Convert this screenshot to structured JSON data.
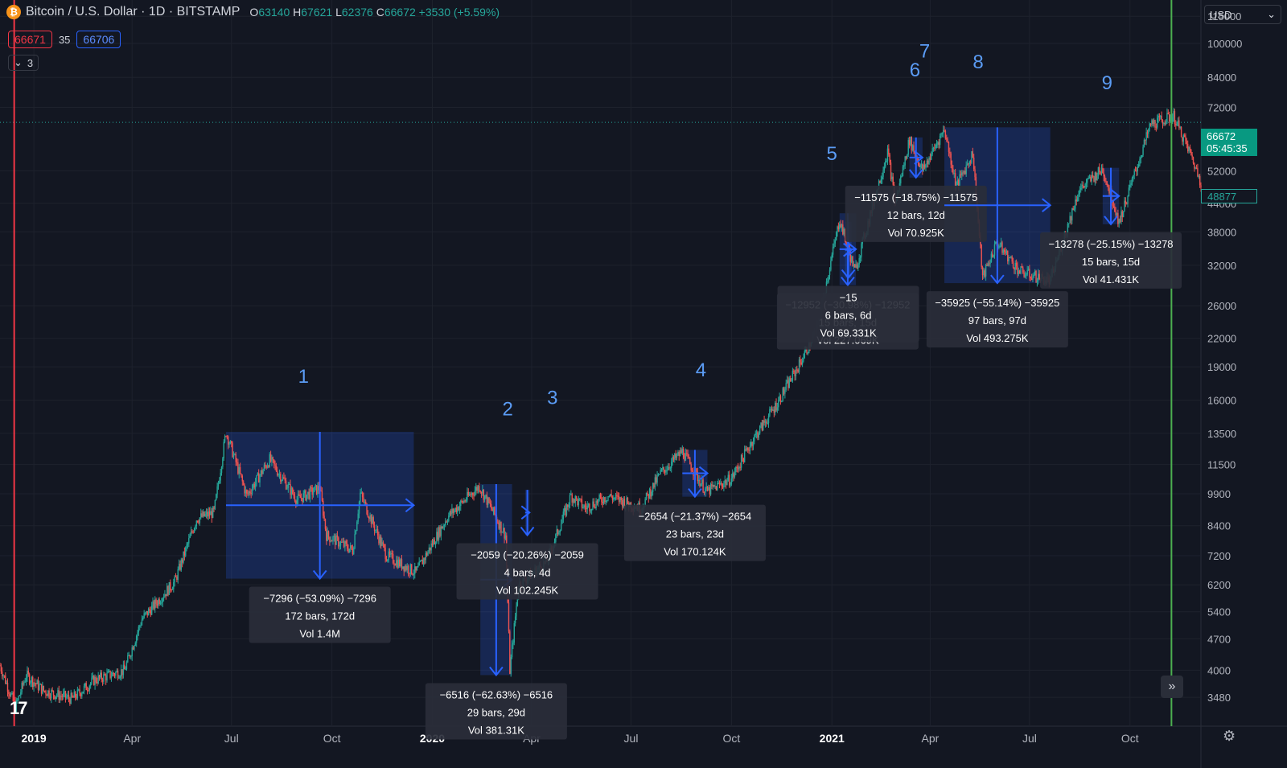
{
  "header": {
    "title": "Bitcoin / U.S. Dollar · 1D · BITSTAMP",
    "open_label": "O",
    "open": "63140",
    "high_label": "H",
    "high": "67621",
    "low_label": "L",
    "low": "62376",
    "close_label": "C",
    "close": "66672",
    "change": "+3530 (+5.59%)"
  },
  "indicator": {
    "bid": "66671",
    "spread": "35",
    "ask": "66706"
  },
  "collapse": {
    "icon": "chevron-down-icon",
    "count": "3"
  },
  "currency": {
    "label": "USD",
    "icon": "chevron-down-icon"
  },
  "price_tags": {
    "last": "66672",
    "countdown": "05:45:35",
    "line": "48877"
  },
  "colors": {
    "up": "#26a69a",
    "down": "#ef5350",
    "accent": "#2962ff",
    "bg": "#131722"
  },
  "chart_data": {
    "type": "candlestick",
    "x_range": [
      "2018-12-01",
      "2021-12-05"
    ],
    "y_scale": "log",
    "ylim": [
      3000,
      125000
    ],
    "y_ticks": [
      "115000",
      "100000",
      "84000",
      "72000",
      "52000",
      "44000",
      "38000",
      "32000",
      "26000",
      "22000",
      "19000",
      "16000",
      "13500",
      "11500",
      "9900",
      "8400",
      "7200",
      "6200",
      "5400",
      "4700",
      "4000",
      "3480"
    ],
    "x_ticks": [
      {
        "label": "2019",
        "date": "2019-01-01",
        "bold": true
      },
      {
        "label": "Apr",
        "date": "2019-04-01"
      },
      {
        "label": "Jul",
        "date": "2019-07-01"
      },
      {
        "label": "Oct",
        "date": "2019-10-01"
      },
      {
        "label": "2020",
        "date": "2020-01-01",
        "bold": true
      },
      {
        "label": "Apr",
        "date": "2020-04-01"
      },
      {
        "label": "Jul",
        "date": "2020-07-01"
      },
      {
        "label": "Oct",
        "date": "2020-10-01"
      },
      {
        "label": "2021",
        "date": "2021-01-01",
        "bold": true
      },
      {
        "label": "Apr",
        "date": "2021-04-01"
      },
      {
        "label": "Jul",
        "date": "2021-07-01"
      },
      {
        "label": "Oct",
        "date": "2021-10-01"
      }
    ],
    "price_path": [
      [
        "2018-12-01",
        4100
      ],
      [
        "2018-12-15",
        3300
      ],
      [
        "2018-12-25",
        3900
      ],
      [
        "2019-01-10",
        3600
      ],
      [
        "2019-02-05",
        3450
      ],
      [
        "2019-02-25",
        3800
      ],
      [
        "2019-03-25",
        4000
      ],
      [
        "2019-04-10",
        5200
      ],
      [
        "2019-05-10",
        6300
      ],
      [
        "2019-05-30",
        8700
      ],
      [
        "2019-06-15",
        9000
      ],
      [
        "2019-06-26",
        13600
      ],
      [
        "2019-07-15",
        9800
      ],
      [
        "2019-08-05",
        11800
      ],
      [
        "2019-08-30",
        9600
      ],
      [
        "2019-09-20",
        10200
      ],
      [
        "2019-09-26",
        8000
      ],
      [
        "2019-10-20",
        7400
      ],
      [
        "2019-10-27",
        9900
      ],
      [
        "2019-11-20",
        7200
      ],
      [
        "2019-12-17",
        6600
      ],
      [
        "2020-01-15",
        8800
      ],
      [
        "2020-02-13",
        10300
      ],
      [
        "2020-03-08",
        8000
      ],
      [
        "2020-03-12",
        4000
      ],
      [
        "2020-03-20",
        6200
      ],
      [
        "2020-04-15",
        7000
      ],
      [
        "2020-05-07",
        9800
      ],
      [
        "2020-05-20",
        9200
      ],
      [
        "2020-06-10",
        9800
      ],
      [
        "2020-07-10",
        9200
      ],
      [
        "2020-07-28",
        11000
      ],
      [
        "2020-08-17",
        12300
      ],
      [
        "2020-09-08",
        10000
      ],
      [
        "2020-10-01",
        10700
      ],
      [
        "2020-10-20",
        13000
      ],
      [
        "2020-11-10",
        15500
      ],
      [
        "2020-12-01",
        19000
      ],
      [
        "2020-12-18",
        23000
      ],
      [
        "2021-01-08",
        40500
      ],
      [
        "2021-01-22",
        31000
      ],
      [
        "2021-02-10",
        46000
      ],
      [
        "2021-02-21",
        57500
      ],
      [
        "2021-02-28",
        44000
      ],
      [
        "2021-03-13",
        61000
      ],
      [
        "2021-03-25",
        52000
      ],
      [
        "2021-04-14",
        64500
      ],
      [
        "2021-04-25",
        48000
      ],
      [
        "2021-05-10",
        57000
      ],
      [
        "2021-05-19",
        30000
      ],
      [
        "2021-06-01",
        36000
      ],
      [
        "2021-06-22",
        31000
      ],
      [
        "2021-07-20",
        29500
      ],
      [
        "2021-08-15",
        47000
      ],
      [
        "2021-09-06",
        52500
      ],
      [
        "2021-09-21",
        40000
      ],
      [
        "2021-10-20",
        66000
      ],
      [
        "2021-11-10",
        68800
      ],
      [
        "2021-11-25",
        57000
      ],
      [
        "2021-12-05",
        49000
      ]
    ],
    "wave_labels": [
      {
        "label": "1",
        "date": "2019-09-05",
        "price": 17500
      },
      {
        "label": "2",
        "date": "2020-03-10",
        "price": 14800
      },
      {
        "label": "3",
        "date": "2020-04-20",
        "price": 15700
      },
      {
        "label": "4",
        "date": "2020-09-03",
        "price": 18100
      },
      {
        "label": "5",
        "date": "2021-01-01",
        "price": 55000
      },
      {
        "label": "6",
        "date": "2021-03-18",
        "price": 84500
      },
      {
        "label": "7",
        "date": "2021-03-27",
        "price": 93000
      },
      {
        "label": "8",
        "date": "2021-05-15",
        "price": 88000
      },
      {
        "label": "9",
        "date": "2021-09-10",
        "price": 79000
      }
    ],
    "measurements": [
      {
        "from_date": "2019-06-26",
        "to_date": "2019-12-15",
        "high": 13600,
        "low": 6400,
        "text": [
          "−7296 (−53.09%) −7296",
          "172 bars, 172d",
          "Vol 1.4M"
        ]
      },
      {
        "from_date": "2020-02-14",
        "to_date": "2020-03-14",
        "high": 10400,
        "low": 3900,
        "text": [
          "−6516 (−62.63%) −6516",
          "29 bars, 29d",
          "Vol 381.31K"
        ]
      },
      {
        "from_date": "2020-03-26",
        "to_date": "2020-03-30",
        "high": 10100,
        "low": 8000,
        "text": [
          "−2059 (−20.26%) −2059",
          "4 bars, 4d",
          "Vol 102.245K"
        ]
      },
      {
        "from_date": "2020-08-17",
        "to_date": "2020-09-09",
        "high": 12400,
        "low": 9750,
        "text": [
          "−2654 (−21.37%) −2654",
          "23 bars, 23d",
          "Vol 170.124K"
        ]
      },
      {
        "from_date": "2021-01-08",
        "to_date": "2021-01-23",
        "high": 41800,
        "low": 28900,
        "text": [
          "−12952 (−30.98%) −12952",
          "15 bars, 15d",
          "Vol 227.069K"
        ]
      },
      {
        "from_date": "2021-01-13",
        "to_date": "2021-01-19",
        "high": 40000,
        "low": 30000,
        "text": [
          "−15",
          "6 bars, 6d",
          "Vol 69.331K"
        ]
      },
      {
        "from_date": "2021-03-13",
        "to_date": "2021-03-25",
        "high": 61700,
        "low": 50200,
        "text": [
          "−11575 (−18.75%) −11575",
          "12 bars, 12d",
          "Vol 70.925K"
        ]
      },
      {
        "from_date": "2021-04-14",
        "to_date": "2021-07-20",
        "high": 65000,
        "low": 29200,
        "text": [
          "−35925 (−55.14%) −35925",
          "97 bars, 97d",
          "Vol 493.275K"
        ]
      },
      {
        "from_date": "2021-09-06",
        "to_date": "2021-09-21",
        "high": 52800,
        "low": 39500,
        "text": [
          "−13278 (−25.15%) −13278",
          "15 bars, 15d",
          "Vol 41.431K"
        ]
      }
    ],
    "vertical_lines": [
      {
        "date": "2018-12-14",
        "color": "#f23645"
      },
      {
        "date": "2021-11-08",
        "color": "#4caf50"
      }
    ],
    "last_price_line": 66672
  }
}
